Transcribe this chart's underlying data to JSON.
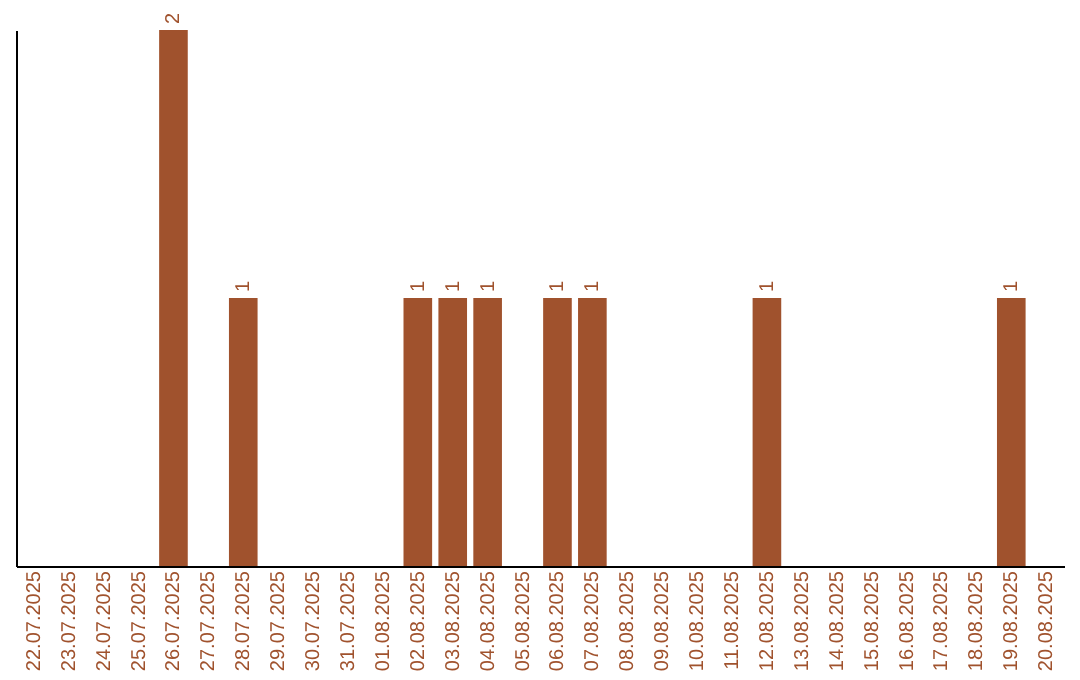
{
  "chart_data": {
    "type": "bar",
    "categories": [
      "22.07.2025",
      "23.07.2025",
      "24.07.2025",
      "25.07.2025",
      "26.07.2025",
      "27.07.2025",
      "28.07.2025",
      "29.07.2025",
      "30.07.2025",
      "31.07.2025",
      "01.08.2025",
      "02.08.2025",
      "03.08.2025",
      "04.08.2025",
      "05.08.2025",
      "06.08.2025",
      "07.08.2025",
      "08.08.2025",
      "09.08.2025",
      "10.08.2025",
      "11.08.2025",
      "12.08.2025",
      "13.08.2025",
      "14.08.2025",
      "15.08.2025",
      "16.08.2025",
      "17.08.2025",
      "18.08.2025",
      "19.08.2025",
      "20.08.2025"
    ],
    "values": [
      0,
      0,
      0,
      0,
      2,
      0,
      1,
      0,
      0,
      0,
      0,
      1,
      1,
      1,
      0,
      1,
      1,
      0,
      0,
      0,
      0,
      1,
      0,
      0,
      0,
      0,
      0,
      0,
      1,
      0
    ],
    "value_labels": [
      null,
      null,
      null,
      null,
      "2",
      null,
      "1",
      null,
      null,
      null,
      null,
      "1",
      "1",
      "1",
      null,
      "1",
      "1",
      null,
      null,
      null,
      null,
      "1",
      null,
      null,
      null,
      null,
      null,
      null,
      "1",
      null
    ],
    "color": "#a0522d",
    "tick_labels": "x"
  }
}
